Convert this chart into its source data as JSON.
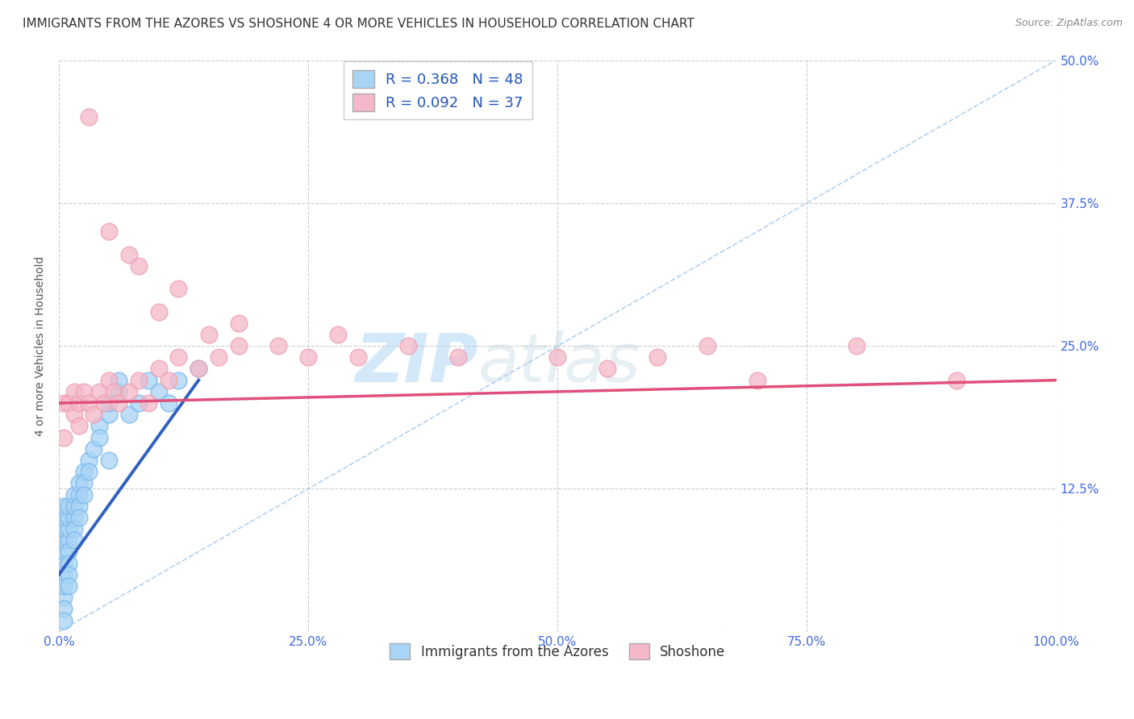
{
  "title": "IMMIGRANTS FROM THE AZORES VS SHOSHONE 4 OR MORE VEHICLES IN HOUSEHOLD CORRELATION CHART",
  "source": "Source: ZipAtlas.com",
  "ylabel": "4 or more Vehicles in Household",
  "x_tick_labels": [
    "0.0%",
    "25.0%",
    "50.0%",
    "75.0%",
    "100.0%"
  ],
  "x_tick_values": [
    0,
    25,
    50,
    75,
    100
  ],
  "y_tick_labels_right": [
    "50.0%",
    "37.5%",
    "25.0%",
    "12.5%",
    ""
  ],
  "y_tick_values": [
    0,
    12.5,
    25,
    37.5,
    50
  ],
  "xlim": [
    0,
    100
  ],
  "ylim": [
    0,
    50
  ],
  "R_blue": 0.368,
  "N_blue": 48,
  "R_pink": 0.092,
  "N_pink": 37,
  "blue_color": "#a8d4f5",
  "blue_edge_color": "#7ab8ed",
  "blue_line_color": "#3060c0",
  "pink_color": "#f5b8c8",
  "pink_edge_color": "#eda0b5",
  "pink_line_color": "#e0507a",
  "legend_label_blue": "Immigrants from the Azores",
  "legend_label_pink": "Shoshone",
  "watermark_zip": "ZIP",
  "watermark_atlas": "atlas",
  "blue_scatter_x": [
    0.5,
    0.5,
    0.5,
    0.5,
    0.5,
    0.5,
    0.5,
    0.5,
    0.5,
    0.5,
    0.5,
    1.0,
    1.0,
    1.0,
    1.0,
    1.0,
    1.0,
    1.0,
    1.0,
    1.5,
    1.5,
    1.5,
    1.5,
    1.5,
    2.0,
    2.0,
    2.0,
    2.0,
    2.5,
    2.5,
    2.5,
    3.0,
    3.0,
    3.5,
    4.0,
    4.0,
    5.0,
    5.0,
    5.0,
    6.0,
    6.0,
    7.0,
    8.0,
    9.0,
    10.0,
    11.0,
    12.0,
    14.0
  ],
  "blue_scatter_y": [
    5,
    6,
    7,
    8,
    9,
    10,
    11,
    3,
    4,
    2,
    1,
    8,
    9,
    10,
    11,
    7,
    6,
    5,
    4,
    10,
    11,
    12,
    9,
    8,
    12,
    13,
    11,
    10,
    14,
    13,
    12,
    15,
    14,
    16,
    18,
    17,
    19,
    20,
    15,
    21,
    22,
    19,
    20,
    22,
    21,
    20,
    22,
    23
  ],
  "pink_scatter_x": [
    0.5,
    0.5,
    1.0,
    1.5,
    1.5,
    2.0,
    2.0,
    2.5,
    3.0,
    3.5,
    4.0,
    4.5,
    5.0,
    5.5,
    6.0,
    7.0,
    8.0,
    9.0,
    10.0,
    11.0,
    12.0,
    14.0,
    16.0,
    18.0,
    22.0,
    25.0,
    28.0,
    30.0,
    35.0,
    40.0,
    50.0,
    55.0,
    60.0,
    65.0,
    70.0,
    80.0,
    90.0
  ],
  "pink_scatter_y": [
    20,
    17,
    20,
    21,
    19,
    20,
    18,
    21,
    20,
    19,
    21,
    20,
    22,
    21,
    20,
    21,
    22,
    20,
    23,
    22,
    24,
    23,
    24,
    25,
    25,
    24,
    26,
    24,
    25,
    24,
    24,
    23,
    24,
    25,
    22,
    25,
    22
  ],
  "pink_outlier_x": [
    3.0,
    5.0,
    7.0,
    8.0,
    10.0,
    12.0,
    15.0,
    18.0
  ],
  "pink_outlier_y": [
    45,
    35,
    33,
    32,
    28,
    30,
    26,
    27
  ],
  "blue_line_x": [
    0,
    14
  ],
  "blue_line_y": [
    5,
    22
  ],
  "pink_line_x": [
    0,
    100
  ],
  "pink_line_y": [
    20,
    22
  ],
  "diag_line_x": [
    0,
    100
  ],
  "diag_line_y": [
    0,
    50
  ],
  "title_fontsize": 11,
  "axis_label_fontsize": 10,
  "tick_fontsize": 11,
  "legend_fontsize": 13,
  "watermark_fontsize_zip": 60,
  "watermark_fontsize_atlas": 60,
  "background_color": "#FFFFFF",
  "grid_color": "#CCCCCC"
}
